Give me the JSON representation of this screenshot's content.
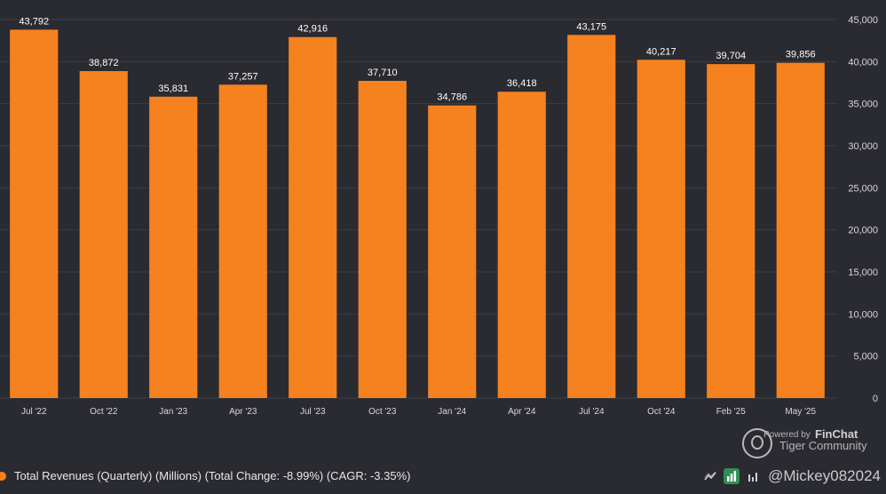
{
  "chart_data": {
    "type": "bar",
    "categories": [
      "Jul '22",
      "Oct '22",
      "Jan '23",
      "Apr '23",
      "Jul '23",
      "Oct '23",
      "Jan '24",
      "Apr '24",
      "Jul '24",
      "Oct '24",
      "Feb '25",
      "May '25"
    ],
    "values": [
      43792,
      38872,
      35831,
      37257,
      42916,
      37710,
      34786,
      36418,
      43175,
      40217,
      39704,
      39856
    ],
    "value_labels": [
      "43,792",
      "38,872",
      "35,831",
      "37,257",
      "42,916",
      "37,710",
      "34,786",
      "36,418",
      "43,175",
      "40,217",
      "39,704",
      "39,856"
    ],
    "ylim": [
      0,
      45000
    ],
    "y_ticks": [
      0,
      5000,
      10000,
      15000,
      20000,
      25000,
      30000,
      35000,
      40000,
      45000
    ],
    "y_tick_labels": [
      "0",
      "5,000",
      "10,000",
      "15,000",
      "20,000",
      "25,000",
      "30,000",
      "35,000",
      "40,000",
      "45,000"
    ],
    "y_axis_position": "right",
    "grid": "horizontal",
    "series": [
      {
        "name": "Total Revenues (Quarterly) (Millions) (Total Change: -8.99%) (CAGR: -3.35%)",
        "values": [
          43792,
          38872,
          35831,
          37257,
          42916,
          37710,
          34786,
          36418,
          43175,
          40217,
          39704,
          39856
        ]
      }
    ],
    "legend_placement": "bottom-left"
  },
  "colors": {
    "background": "#2a2a31",
    "bar": "#f5821f",
    "grid": "#3d3d45",
    "tick_text": "#d6d6da",
    "value_label": "#ffffff"
  },
  "legend": {
    "label": "Total Revenues (Quarterly) (Millions) (Total Change: -8.99%) (CAGR: -3.35%)"
  },
  "watermark": {
    "powered_by": "Powered by",
    "brand": "FinChat",
    "community": "Tiger Community",
    "handle": "@Mickey082024",
    "logo_icon": "tiger-community-logo-icon"
  },
  "toolbar": {
    "icons": [
      "trend-line-icon",
      "bar-chart-icon",
      "column-chart-icon",
      "settings-icon"
    ]
  }
}
